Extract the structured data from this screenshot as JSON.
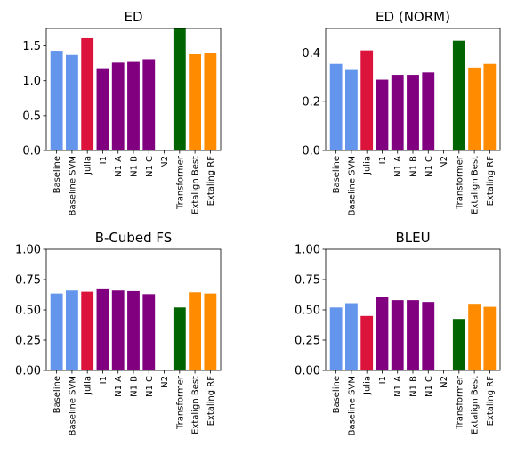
{
  "palette": {
    "blue": "#6495ed",
    "red": "#dc143c",
    "purple": "#800080",
    "green": "#006400",
    "orange": "#ff8c00"
  },
  "chart_data": [
    {
      "type": "bar",
      "title": "ED",
      "categories": [
        "Baseline",
        "Baseline SVM",
        "Julia",
        "I1",
        "N1 A",
        "N1 B",
        "N1 C",
        "N2",
        "Transformer",
        "Extalign Best",
        "Extaling RF"
      ],
      "values": [
        1.43,
        1.37,
        1.61,
        1.18,
        1.26,
        1.27,
        1.31,
        0,
        1.75,
        1.38,
        1.4
      ],
      "bar_colors": [
        "blue",
        "blue",
        "red",
        "purple",
        "purple",
        "purple",
        "purple",
        "purple",
        "green",
        "orange",
        "orange"
      ],
      "ylim": [
        0,
        1.75
      ],
      "yticks": [
        0.0,
        0.5,
        1.0,
        1.5
      ],
      "ytick_labels": [
        "0.0",
        "0.5",
        "1.0",
        "1.5"
      ],
      "grid": false
    },
    {
      "type": "bar",
      "title": "ED (NORM)",
      "categories": [
        "Baseline",
        "Baseline SVM",
        "Julia",
        "I1",
        "N1 A",
        "N1 B",
        "N1 C",
        "N2",
        "Transformer",
        "Extalign Best",
        "Extaling RF"
      ],
      "values": [
        0.355,
        0.33,
        0.41,
        0.29,
        0.31,
        0.31,
        0.32,
        0,
        0.45,
        0.34,
        0.355
      ],
      "bar_colors": [
        "blue",
        "blue",
        "red",
        "purple",
        "purple",
        "purple",
        "purple",
        "purple",
        "green",
        "orange",
        "orange"
      ],
      "ylim": [
        0,
        0.5
      ],
      "yticks": [
        0.0,
        0.2,
        0.4
      ],
      "ytick_labels": [
        "0.0",
        "0.2",
        "0.4"
      ],
      "grid": false
    },
    {
      "type": "bar",
      "title": "B-Cubed FS",
      "categories": [
        "Baseline",
        "Baseline SVM",
        "Julia",
        "I1",
        "N1 A",
        "N1 B",
        "N1 C",
        "N2",
        "Transformer",
        "Extalign Best",
        "Extaling RF"
      ],
      "values": [
        0.635,
        0.66,
        0.65,
        0.67,
        0.66,
        0.655,
        0.63,
        0,
        0.52,
        0.645,
        0.635
      ],
      "bar_colors": [
        "blue",
        "blue",
        "red",
        "purple",
        "purple",
        "purple",
        "purple",
        "purple",
        "green",
        "orange",
        "orange"
      ],
      "ylim": [
        0,
        1.0
      ],
      "yticks": [
        0.0,
        0.25,
        0.5,
        0.75,
        1.0
      ],
      "ytick_labels": [
        "0.00",
        "0.25",
        "0.50",
        "0.75",
        "1.00"
      ],
      "grid": false
    },
    {
      "type": "bar",
      "title": "BLEU",
      "categories": [
        "Baseline",
        "Baseline SVM",
        "Julia",
        "I1",
        "N1 A",
        "N1 B",
        "N1 C",
        "N2",
        "Transformer",
        "Extalign Best",
        "Extaling RF"
      ],
      "values": [
        0.52,
        0.555,
        0.45,
        0.61,
        0.58,
        0.58,
        0.565,
        0,
        0.425,
        0.55,
        0.525
      ],
      "bar_colors": [
        "blue",
        "blue",
        "red",
        "purple",
        "purple",
        "purple",
        "purple",
        "purple",
        "green",
        "orange",
        "orange"
      ],
      "ylim": [
        0,
        1.0
      ],
      "yticks": [
        0.0,
        0.25,
        0.5,
        0.75,
        1.0
      ],
      "ytick_labels": [
        "0.00",
        "0.25",
        "0.50",
        "0.75",
        "1.00"
      ],
      "grid": false
    }
  ]
}
